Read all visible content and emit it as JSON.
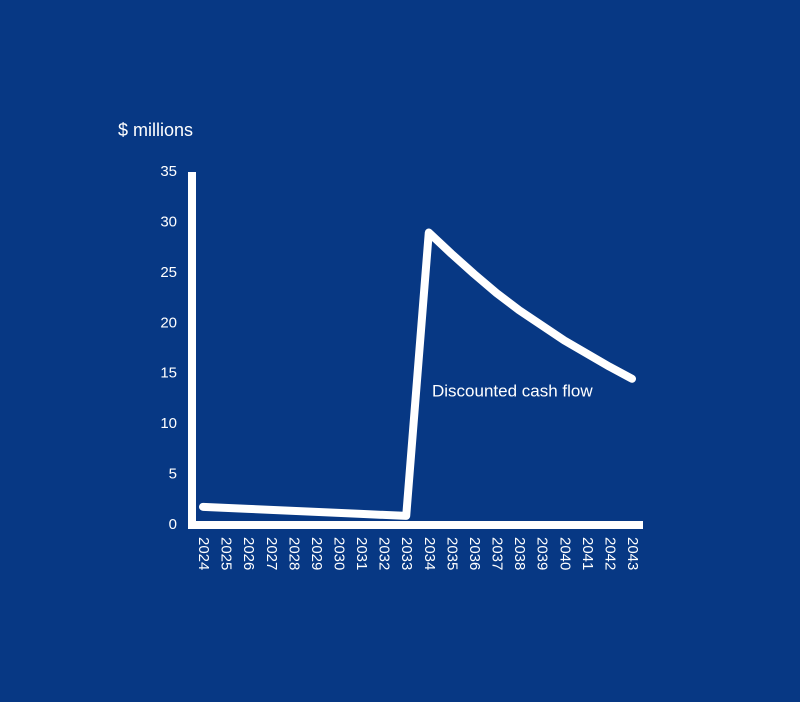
{
  "chart_data": {
    "type": "line",
    "y_label": "$ millions",
    "categories": [
      "2024",
      "2025",
      "2026",
      "2027",
      "2028",
      "2029",
      "2030",
      "2031",
      "2032",
      "2033",
      "2034",
      "2035",
      "2036",
      "2037",
      "2038",
      "2039",
      "2040",
      "2041",
      "2042",
      "2043"
    ],
    "series": [
      {
        "name": "Discounted cash flow",
        "color": "#ffffff",
        "values": [
          1.8,
          1.7,
          1.6,
          1.5,
          1.4,
          1.3,
          1.2,
          1.1,
          1.0,
          0.9,
          29.0,
          26.9,
          24.9,
          23.0,
          21.3,
          19.8,
          18.3,
          17.0,
          15.7,
          14.5
        ]
      }
    ],
    "ylim": [
      0,
      35
    ],
    "yticks": [
      0,
      5,
      10,
      15,
      20,
      25,
      30,
      35
    ]
  }
}
